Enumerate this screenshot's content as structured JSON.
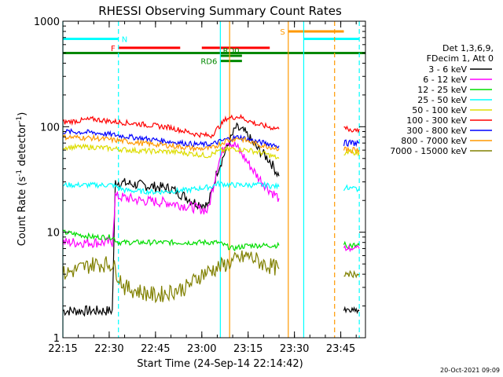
{
  "chart_data": {
    "type": "line",
    "title": "RHESSI Observing Summary Count Rates",
    "xlabel": "Start Time (24-Sep-14 22:14:42)",
    "ylabel_main": "Count Rate (s",
    "ylabel_sup1": "-1",
    "ylabel_mid": " detector",
    "ylabel_sup2": "-1",
    "ylabel_end": ")",
    "x_range_minutes": [
      22.0,
      22.3,
      22.6,
      22.9,
      23.2
    ],
    "xlim": [
      "22:15",
      "23:53"
    ],
    "ylim": [
      1,
      1000
    ],
    "yscale": "log",
    "x_ticks": [
      {
        "label": "22:15",
        "t": "22:15"
      },
      {
        "label": "22:30",
        "t": "22:30"
      },
      {
        "label": "22:45",
        "t": "22:45"
      },
      {
        "label": "23:00",
        "t": "23:00"
      },
      {
        "label": "23:15",
        "t": "23:15"
      },
      {
        "label": "23:30",
        "t": "23:30"
      },
      {
        "label": "23:45",
        "t": "23:45"
      }
    ],
    "y_ticks": [
      {
        "label": "1",
        "v": 1
      },
      {
        "label": "10",
        "v": 10
      },
      {
        "label": "100",
        "v": 100
      },
      {
        "label": "1000",
        "v": 1000
      }
    ],
    "legend_header": [
      "Det 1,3,6,9,",
      "FDecim 1, Att 0"
    ],
    "legend_placement": "right",
    "series": [
      {
        "name": "3 - 6 keV",
        "color": "#000000",
        "key": "s1",
        "points": [
          [
            "22:15",
            1.8
          ],
          [
            "22:31",
            1.8
          ],
          [
            "22:32",
            30
          ],
          [
            "22:40",
            28
          ],
          [
            "22:50",
            26
          ],
          [
            "22:58",
            19
          ],
          [
            "23:02",
            18
          ],
          [
            "23:05",
            38
          ],
          [
            "23:08",
            62
          ],
          [
            "23:11",
            98
          ],
          [
            "23:14",
            88
          ],
          [
            "23:18",
            62
          ],
          [
            "23:22",
            48
          ],
          [
            "23:25",
            34
          ]
        ]
      },
      {
        "name": "6 - 12 keV",
        "color": "#ff00ff",
        "key": "s2",
        "points": [
          [
            "22:15",
            8
          ],
          [
            "22:31",
            8
          ],
          [
            "22:32",
            22
          ],
          [
            "22:40",
            20
          ],
          [
            "22:50",
            19
          ],
          [
            "22:58",
            17
          ],
          [
            "23:02",
            16
          ],
          [
            "23:05",
            42
          ],
          [
            "23:08",
            75
          ],
          [
            "23:11",
            66
          ],
          [
            "23:14",
            50
          ],
          [
            "23:18",
            34
          ],
          [
            "23:22",
            25
          ],
          [
            "23:25",
            21
          ]
        ]
      },
      {
        "name": "12 - 25 keV",
        "color": "#00dd00",
        "key": "s3",
        "points": [
          [
            "22:15",
            10
          ],
          [
            "22:25",
            9
          ],
          [
            "22:31",
            9
          ],
          [
            "22:33",
            8
          ],
          [
            "22:50",
            8
          ],
          [
            "22:58",
            8
          ],
          [
            "23:03",
            8
          ],
          [
            "23:05",
            8
          ],
          [
            "23:10",
            7
          ],
          [
            "23:15",
            7.5
          ],
          [
            "23:25",
            7.5
          ]
        ]
      },
      {
        "name": "25 - 50 keV",
        "color": "#00ffff",
        "key": "s4",
        "points": [
          [
            "22:15",
            28
          ],
          [
            "22:31",
            28
          ],
          [
            "22:35",
            25
          ],
          [
            "22:45",
            24
          ],
          [
            "22:55",
            25
          ],
          [
            "23:03",
            27
          ],
          [
            "23:05",
            29
          ],
          [
            "23:10",
            28
          ],
          [
            "23:20",
            28
          ],
          [
            "23:25",
            27
          ]
        ]
      },
      {
        "name": "50 - 100 keV",
        "color": "#dddd00",
        "key": "s5",
        "points": [
          [
            "22:15",
            64
          ],
          [
            "22:25",
            64
          ],
          [
            "22:31",
            62
          ],
          [
            "22:40",
            59
          ],
          [
            "22:50",
            58
          ],
          [
            "22:58",
            55
          ],
          [
            "23:02",
            53
          ],
          [
            "23:05",
            58
          ],
          [
            "23:10",
            62
          ],
          [
            "23:15",
            60
          ],
          [
            "23:20",
            56
          ],
          [
            "23:25",
            50
          ]
        ]
      },
      {
        "name": "100 - 300 keV",
        "color": "#ff0000",
        "key": "s6",
        "points": [
          [
            "22:15",
            110
          ],
          [
            "22:25",
            118
          ],
          [
            "22:31",
            112
          ],
          [
            "22:40",
            106
          ],
          [
            "22:50",
            98
          ],
          [
            "22:58",
            85
          ],
          [
            "23:03",
            82
          ],
          [
            "23:08",
            120
          ],
          [
            "23:12",
            125
          ],
          [
            "23:18",
            105
          ],
          [
            "23:25",
            95
          ]
        ]
      },
      {
        "name": "300 - 800 keV",
        "color": "#0000ff",
        "key": "s7",
        "points": [
          [
            "22:15",
            90
          ],
          [
            "22:25",
            88
          ],
          [
            "22:31",
            84
          ],
          [
            "22:40",
            78
          ],
          [
            "22:50",
            72
          ],
          [
            "22:58",
            68
          ],
          [
            "23:03",
            68
          ],
          [
            "23:08",
            76
          ],
          [
            "23:12",
            80
          ],
          [
            "23:18",
            72
          ],
          [
            "23:25",
            66
          ]
        ]
      },
      {
        "name": "800 - 7000 keV",
        "color": "#ff9900",
        "key": "s8",
        "points": [
          [
            "22:15",
            80
          ],
          [
            "22:25",
            78
          ],
          [
            "22:31",
            75
          ],
          [
            "22:40",
            70
          ],
          [
            "22:50",
            66
          ],
          [
            "22:58",
            62
          ],
          [
            "23:03",
            62
          ],
          [
            "23:08",
            74
          ],
          [
            "23:12",
            78
          ],
          [
            "23:18",
            68
          ],
          [
            "23:25",
            62
          ]
        ]
      },
      {
        "name": "7000 - 15000 keV",
        "color": "#808000",
        "key": "s9",
        "points": [
          [
            "22:15",
            4
          ],
          [
            "22:25",
            5
          ],
          [
            "22:31",
            5
          ],
          [
            "22:35",
            3
          ],
          [
            "22:45",
            2.5
          ],
          [
            "22:55",
            3
          ],
          [
            "23:00",
            4
          ],
          [
            "23:08",
            5
          ],
          [
            "23:15",
            6
          ],
          [
            "23:20",
            5
          ],
          [
            "23:25",
            4.5
          ]
        ]
      }
    ],
    "late_segments": [
      {
        "key": "s6",
        "start": "23:46",
        "end": "23:51",
        "value": 95
      },
      {
        "key": "s7",
        "start": "23:46",
        "end": "23:51",
        "value": 70
      },
      {
        "key": "s8",
        "start": "23:46",
        "end": "23:51",
        "value": 60
      },
      {
        "key": "s5",
        "start": "23:46",
        "end": "23:51",
        "value": 57
      },
      {
        "key": "s4",
        "start": "23:46",
        "end": "23:51",
        "value": 26
      },
      {
        "key": "s3",
        "start": "23:46",
        "end": "23:51",
        "value": 7.5
      },
      {
        "key": "s2",
        "start": "23:46",
        "end": "23:51",
        "value": 7
      },
      {
        "key": "s9",
        "start": "23:46",
        "end": "23:51",
        "value": 4
      },
      {
        "key": "s1",
        "start": "23:46",
        "end": "23:51",
        "value": 1.8
      }
    ],
    "flags": [
      {
        "label": "N",
        "color": "#00ffff",
        "start": "22:15",
        "end": "22:33",
        "value": 680,
        "label_side": "right"
      },
      {
        "label": "",
        "color": "#00ffff",
        "start": "23:33",
        "end": "23:51",
        "value": 680,
        "label_side": "right"
      },
      {
        "label": "F",
        "color": "#ff0000",
        "start": "22:33",
        "end": "22:53",
        "value": 560,
        "label_side": "left"
      },
      {
        "label": "",
        "color": "#ff0000",
        "start": "23:00",
        "end": "23:22",
        "value": 560,
        "label_side": "left"
      },
      {
        "label": "S",
        "color": "#ff9900",
        "start": "23:28",
        "end": "23:46",
        "value": 800,
        "label_side": "left"
      },
      {
        "label": "RD0",
        "color": "#008800",
        "start": "23:06",
        "end": "23:13",
        "value": 470,
        "label_side": "above"
      },
      {
        "label": "RD6",
        "color": "#008800",
        "start": "23:06",
        "end": "23:13",
        "value": 420,
        "label_side": "left"
      },
      {
        "label": "",
        "color": "#008800",
        "start": "22:15",
        "end": "23:53",
        "value": 500,
        "label_side": "none"
      }
    ],
    "vlines": [
      {
        "t": "22:15",
        "color": "#00ffff",
        "dashed": false
      },
      {
        "t": "22:33",
        "color": "#00ffff",
        "dashed": true
      },
      {
        "t": "23:28",
        "color": "#ff9900",
        "dashed": false
      },
      {
        "t": "23:33",
        "color": "#00ffff",
        "dashed": false
      },
      {
        "t": "23:43",
        "color": "#ff9900",
        "dashed": true
      },
      {
        "t": "23:51",
        "color": "#00ffff",
        "dashed": true
      },
      {
        "t": "23:06",
        "color": "#00ffff",
        "dashed": false
      },
      {
        "t": "23:09",
        "color": "#ff9900",
        "dashed": false
      }
    ],
    "footer": "20-Oct-2021 09:09"
  }
}
